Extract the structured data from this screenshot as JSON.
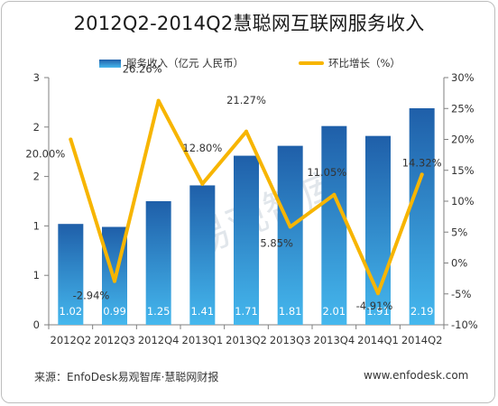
{
  "chart_data": {
    "type": "bar",
    "title": "2012Q2-2014Q2慧聪网互联网服务收入",
    "categories": [
      "2012Q2",
      "2012Q3",
      "2012Q4",
      "2013Q1",
      "2013Q2",
      "2013Q3",
      "2013Q4",
      "2014Q1",
      "2014Q2"
    ],
    "series": [
      {
        "name": "服务收入（亿元  人民币）",
        "type": "bar",
        "axis": "left",
        "values": [
          1.02,
          0.99,
          1.25,
          1.41,
          1.71,
          1.81,
          2.01,
          1.91,
          2.19
        ],
        "labels": [
          "1.02",
          "0.99",
          "1.25",
          "1.41",
          "1.71",
          "1.81",
          "2.01",
          "1.91",
          "2.19"
        ]
      },
      {
        "name": "环比增长（%）",
        "type": "line",
        "axis": "right",
        "values": [
          20.0,
          -2.94,
          26.26,
          12.8,
          21.27,
          5.85,
          11.05,
          -4.91,
          14.32
        ],
        "labels": [
          "20.00%",
          "-2.94%",
          "26.26%",
          "12.80%",
          "21.27%",
          "5.85%",
          "11.05%",
          "-4.91%",
          "14.32%"
        ]
      }
    ],
    "y_left": {
      "ylim": [
        0,
        2.5
      ],
      "tick_values": [
        0,
        0.5,
        1,
        1.5,
        2,
        2.5
      ],
      "tick_labels": [
        "0",
        "1",
        "1",
        "2",
        "2",
        "3"
      ]
    },
    "y_right": {
      "ylim": [
        -10,
        30
      ],
      "tick_values": [
        -10,
        -5,
        0,
        5,
        10,
        15,
        20,
        25,
        30
      ],
      "tick_labels": [
        "-10%",
        "-5%",
        "0%",
        "5%",
        "10%",
        "15%",
        "20%",
        "25%",
        "30%"
      ]
    },
    "grid": false,
    "legend_position": "top",
    "colors": {
      "bar_top": "#1f5fa9",
      "bar_bottom": "#45b8ee",
      "line": "#f7b500",
      "watermark": "#c9d3dc"
    }
  },
  "watermark": "易观智库",
  "footer": {
    "source": "来源：EnfoDesk易观智库·慧聪网财报",
    "website": "www.enfodesk.com"
  }
}
